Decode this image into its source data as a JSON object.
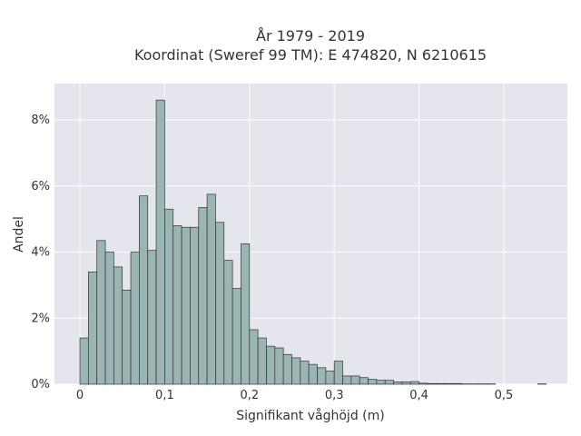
{
  "chart_data": {
    "type": "bar",
    "title_lines": [
      "År 1979 - 2019",
      "Koordinat (Sweref 99 TM): E 474820, N 6210615"
    ],
    "xlabel": "Signifikant våghöjd (m)",
    "ylabel": "Andel",
    "xlim": [
      -0.03,
      0.575
    ],
    "ylim": [
      0,
      9.1
    ],
    "bin_width": 0.01,
    "x_ticks": [
      0,
      0.1,
      0.2,
      0.3,
      0.4,
      0.5
    ],
    "x_tick_labels": [
      "0",
      "0,1",
      "0,2",
      "0,3",
      "0,4",
      "0,5"
    ],
    "y_ticks": [
      0,
      2,
      4,
      6,
      8
    ],
    "y_tick_labels": [
      "0%",
      "2%",
      "4%",
      "6%",
      "8%"
    ],
    "bin_starts": [
      0.0,
      0.01,
      0.02,
      0.03,
      0.04,
      0.05,
      0.06,
      0.07,
      0.08,
      0.09,
      0.1,
      0.11,
      0.12,
      0.13,
      0.14,
      0.15,
      0.16,
      0.17,
      0.18,
      0.19,
      0.2,
      0.21,
      0.22,
      0.23,
      0.24,
      0.25,
      0.26,
      0.27,
      0.28,
      0.29,
      0.3,
      0.31,
      0.32,
      0.33,
      0.34,
      0.35,
      0.36,
      0.37,
      0.38,
      0.39,
      0.4,
      0.41,
      0.42,
      0.43,
      0.44,
      0.45,
      0.46,
      0.47,
      0.48,
      0.49,
      0.5,
      0.51,
      0.52,
      0.53,
      0.54
    ],
    "values": [
      1.4,
      3.4,
      4.35,
      4.0,
      3.55,
      2.85,
      4.0,
      5.7,
      4.05,
      8.6,
      5.3,
      4.8,
      4.75,
      4.75,
      5.35,
      5.75,
      4.9,
      3.75,
      2.9,
      4.25,
      1.65,
      1.4,
      1.15,
      1.1,
      0.9,
      0.8,
      0.7,
      0.6,
      0.5,
      0.4,
      0.7,
      0.25,
      0.25,
      0.2,
      0.15,
      0.12,
      0.12,
      0.07,
      0.07,
      0.08,
      0.03,
      0.02,
      0.02,
      0.02,
      0.02,
      0.01,
      0.01,
      0.01,
      0.01,
      0.0,
      0.0,
      0.0,
      0.0,
      0.0,
      0.01
    ],
    "grid": true,
    "colors": {
      "bar_fill": "#9bb4b4",
      "bar_stroke": "#333333",
      "plot_background": "#e5e5ee",
      "grid": "#ffffff"
    }
  }
}
